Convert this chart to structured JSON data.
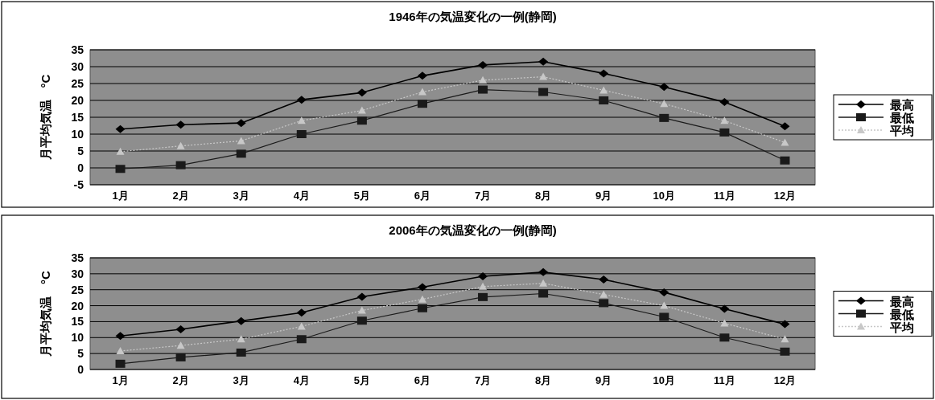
{
  "chart_data": [
    {
      "type": "line",
      "title": "1946年の気温変化の一例(静岡)",
      "ylabel": "月平均気温　°C",
      "categories": [
        "1月",
        "2月",
        "3月",
        "4月",
        "5月",
        "6月",
        "7月",
        "8月",
        "9月",
        "10月",
        "11月",
        "12月"
      ],
      "ylim": [
        -5,
        35
      ],
      "yticks": [
        -5,
        0,
        5,
        10,
        15,
        20,
        25,
        30,
        35
      ],
      "grid": "y",
      "legend": "right",
      "series": [
        {
          "name": "最高",
          "color": "#000000",
          "marker": "diamond",
          "line_style": "solid",
          "values": [
            11.5,
            12.8,
            13.3,
            20.2,
            22.3,
            27.3,
            30.5,
            31.5,
            28,
            24,
            19.5,
            12.3
          ]
        },
        {
          "name": "最低",
          "color": "#1a1a1a",
          "marker": "square",
          "line_style": "solid",
          "values": [
            -0.3,
            0.8,
            4.2,
            10,
            14,
            19,
            23.2,
            22.5,
            20,
            14.8,
            10.5,
            2.2
          ]
        },
        {
          "name": "平均",
          "color": "#c8c8c8",
          "marker": "triangle",
          "line_style": "dotted",
          "values": [
            4.8,
            6.5,
            8,
            14,
            17,
            22.5,
            26,
            27,
            23,
            19,
            14,
            7.5
          ]
        }
      ]
    },
    {
      "type": "line",
      "title": "2006年の気温変化の一例(静岡)",
      "ylabel": "月平均気温　°C",
      "categories": [
        "1月",
        "2月",
        "3月",
        "4月",
        "5月",
        "6月",
        "7月",
        "8月",
        "9月",
        "10月",
        "11月",
        "12月"
      ],
      "ylim": [
        0,
        35
      ],
      "yticks": [
        0,
        5,
        10,
        15,
        20,
        25,
        30,
        35
      ],
      "grid": "y",
      "legend": "right",
      "series": [
        {
          "name": "最高",
          "color": "#000000",
          "marker": "diamond",
          "line_style": "solid",
          "values": [
            10.5,
            12.6,
            15.2,
            17.8,
            22.8,
            25.8,
            29.2,
            30.5,
            28.2,
            24.2,
            19,
            14.2
          ]
        },
        {
          "name": "最低",
          "color": "#1a1a1a",
          "marker": "square",
          "line_style": "solid",
          "values": [
            1.8,
            3.8,
            5.3,
            9.5,
            15.3,
            19.2,
            22.7,
            23.8,
            20.8,
            16.5,
            10,
            5.6
          ]
        },
        {
          "name": "平均",
          "color": "#c8c8c8",
          "marker": "triangle",
          "line_style": "dotted",
          "values": [
            5.8,
            7.5,
            9.5,
            13.5,
            18.5,
            22,
            26,
            27,
            23.5,
            20,
            14.5,
            9.5
          ]
        }
      ]
    }
  ]
}
